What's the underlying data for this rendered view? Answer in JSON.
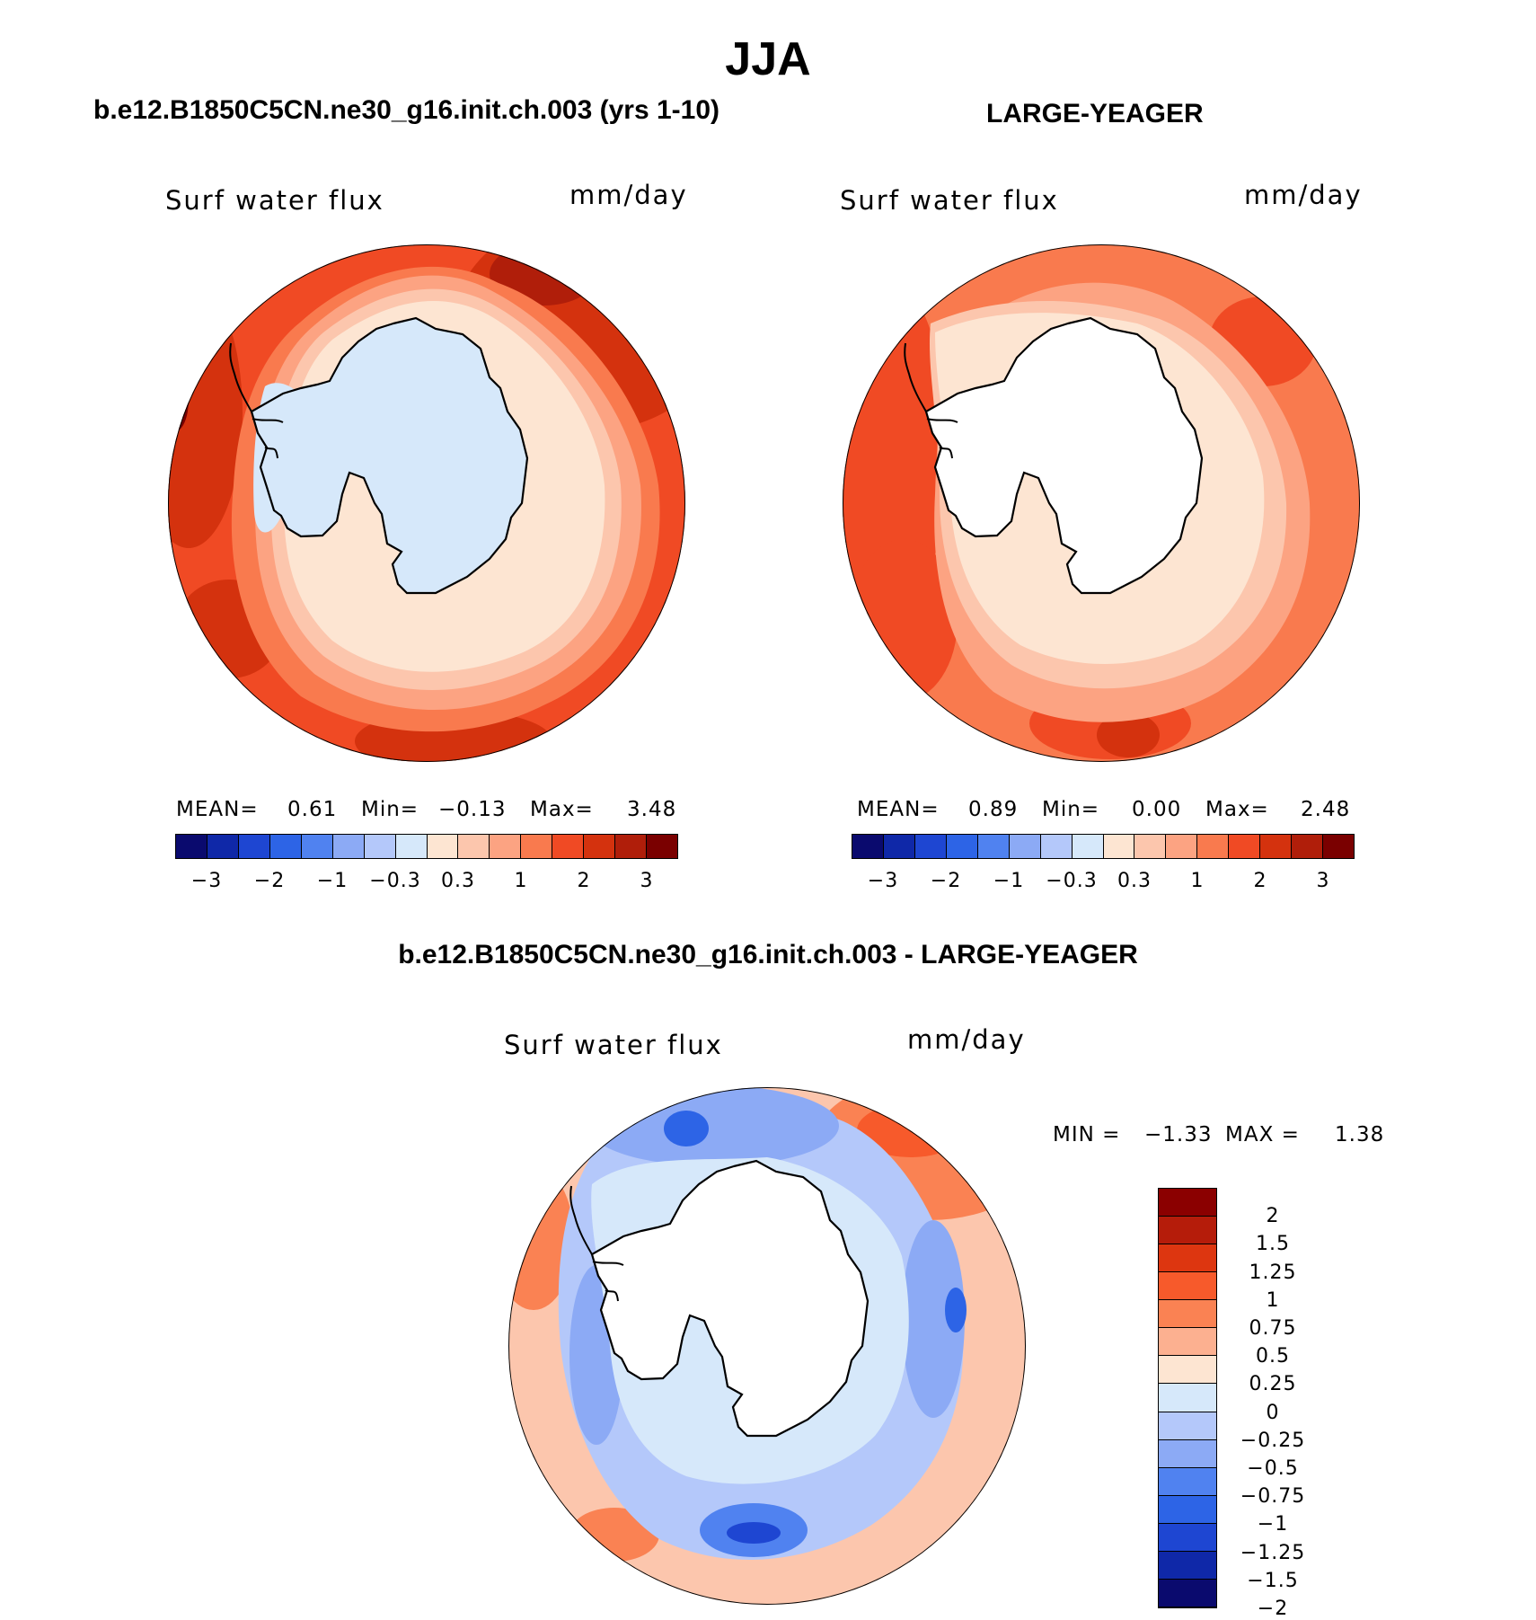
{
  "figure": {
    "title": "JJA"
  },
  "panel1": {
    "title": "b.e12.B1850C5CN.ne30_g16.init.ch.003 (yrs 1-10)",
    "variable": "Surf water flux",
    "units": "mm/day",
    "mean_label": "MEAN=",
    "mean_value": "0.61",
    "min_label": "Min=",
    "min_value": "−0.13",
    "max_label": "Max=",
    "max_value": "3.48",
    "continent_fill": "#d6e8fa",
    "colorbar_colors": [
      "#0a0a6e",
      "#0f28a8",
      "#1e46d2",
      "#2d64e6",
      "#5082f0",
      "#8caaf5",
      "#b4c8fa",
      "#d6e8fa",
      "#fde5d2",
      "#fcc6ad",
      "#fca382",
      "#f97a4e",
      "#f04a24",
      "#d4320e",
      "#b01e0a",
      "#7a0000"
    ],
    "colorbar_labels": [
      "−3",
      "−2",
      "−1",
      "−0.3",
      "0.3",
      "1",
      "2",
      "3"
    ]
  },
  "panel2": {
    "title": "LARGE-YEAGER",
    "variable": "Surf water flux",
    "units": "mm/day",
    "mean_label": "MEAN=",
    "mean_value": "0.89",
    "min_label": "Min=",
    "min_value": "0.00",
    "max_label": "Max=",
    "max_value": "2.48",
    "continent_fill": "#ffffff",
    "colorbar_colors": [
      "#0a0a6e",
      "#0f28a8",
      "#1e46d2",
      "#2d64e6",
      "#5082f0",
      "#8caaf5",
      "#b4c8fa",
      "#d6e8fa",
      "#fde5d2",
      "#fcc6ad",
      "#fca382",
      "#f97a4e",
      "#f04a24",
      "#d4320e",
      "#b01e0a",
      "#7a0000"
    ],
    "colorbar_labels": [
      "−3",
      "−2",
      "−1",
      "−0.3",
      "0.3",
      "1",
      "2",
      "3"
    ]
  },
  "panel3": {
    "title": "b.e12.B1850C5CN.ne30_g16.init.ch.003 - LARGE-YEAGER",
    "variable": "Surf water flux",
    "units": "mm/day",
    "min_label": "MIN =",
    "min_value": "−1.33",
    "max_label": "MAX =",
    "max_value": "1.38",
    "continent_fill": "#ffffff",
    "colorbar_colors": [
      "#8b0000",
      "#b51c0a",
      "#dd3610",
      "#f75a2b",
      "#fa8253",
      "#fcb090",
      "#fde5d2",
      "#d6e8fa",
      "#b4c8fa",
      "#8caaf5",
      "#5082f0",
      "#2d64e6",
      "#1e46d2",
      "#0f28a8",
      "#0a0a6e"
    ],
    "colorbar_labels": [
      "2",
      "1.5",
      "1.25",
      "1",
      "0.75",
      "0.5",
      "0.25",
      "0",
      "−0.25",
      "−0.5",
      "−0.75",
      "−1",
      "−1.25",
      "−1.5",
      "−2"
    ]
  }
}
